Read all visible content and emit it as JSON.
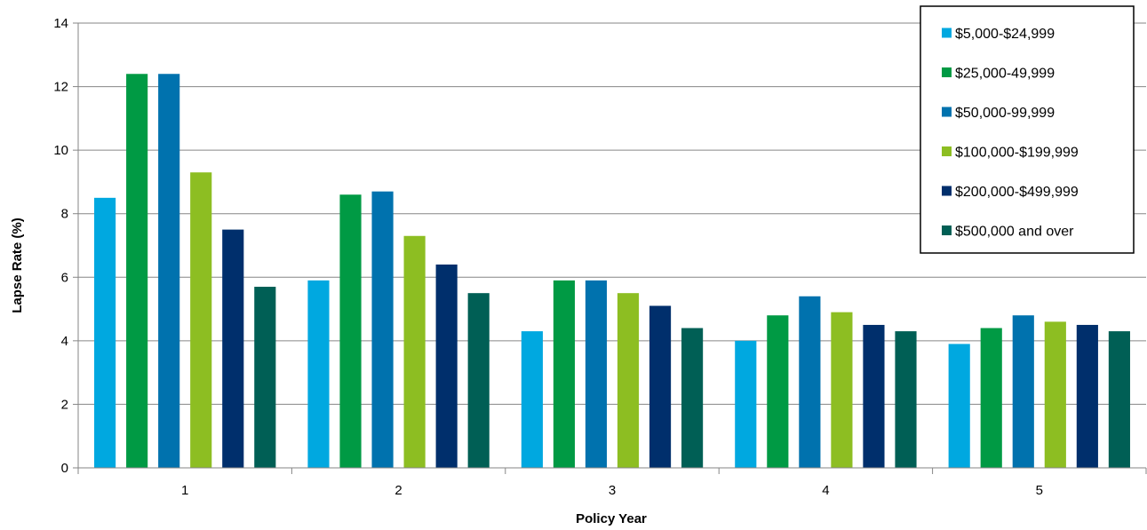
{
  "chart_data": {
    "type": "bar",
    "title": "",
    "xlabel": "Policy Year",
    "ylabel": "Lapse Rate (%)",
    "ylim": [
      0,
      14
    ],
    "yticks": [
      "0",
      "2",
      "4",
      "6",
      "8",
      "10",
      "12",
      "14"
    ],
    "categories": [
      "1",
      "2",
      "3",
      "4",
      "5"
    ],
    "grid": "horizontal",
    "legend_position": "top-right",
    "series": [
      {
        "name": "$5,000-$24,999",
        "color": "#00A8E0",
        "values": [
          8.5,
          5.9,
          4.3,
          4.0,
          3.9
        ]
      },
      {
        "name": "$25,000-49,999",
        "color": "#009A44",
        "values": [
          12.4,
          8.6,
          5.9,
          4.8,
          4.4
        ]
      },
      {
        "name": "$50,000-99,999",
        "color": "#0072AE",
        "values": [
          12.4,
          8.7,
          5.9,
          5.4,
          4.8
        ]
      },
      {
        "name": "$100,000-$199,999",
        "color": "#8DBE22",
        "values": [
          9.3,
          7.3,
          5.5,
          4.9,
          4.6
        ]
      },
      {
        "name": "$200,000-$499,999",
        "color": "#002F6C",
        "values": [
          7.5,
          6.4,
          5.1,
          4.5,
          4.5
        ]
      },
      {
        "name": "$500,000 and over",
        "color": "#005F55",
        "values": [
          5.7,
          5.5,
          4.4,
          4.3,
          4.3
        ]
      }
    ]
  }
}
